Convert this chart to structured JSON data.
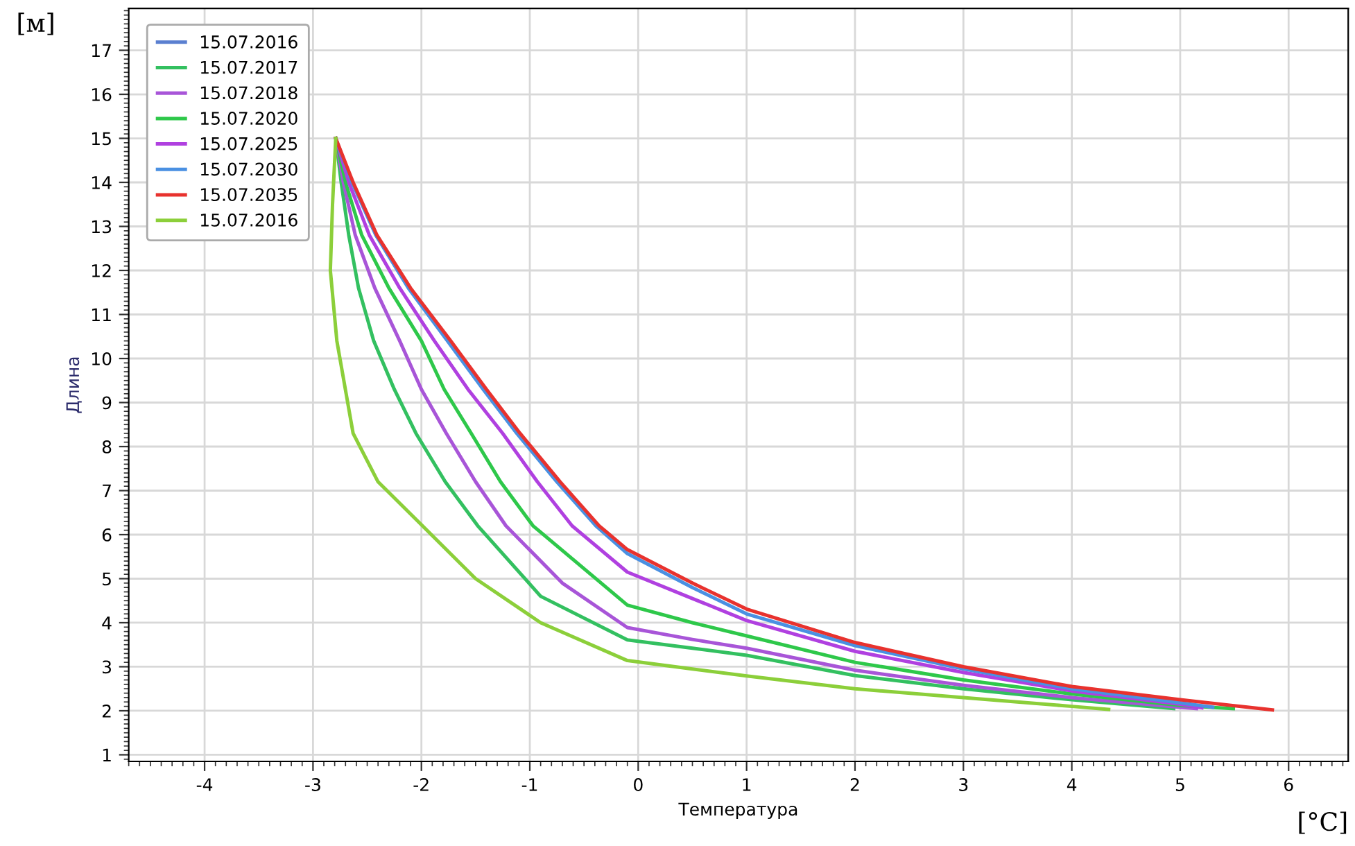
{
  "chart_data": {
    "type": "line",
    "xlabel": "Температура",
    "ylabel": "Длина",
    "annotations": [
      "[м]",
      "[°C]"
    ],
    "xlim": [
      -4.7,
      6.55
    ],
    "ylim": [
      0.85,
      17.95
    ],
    "xticks": [
      -4,
      -3,
      -2,
      -1,
      0,
      1,
      2,
      3,
      4,
      5,
      6
    ],
    "yticks": [
      1,
      2,
      3,
      4,
      5,
      6,
      7,
      8,
      9,
      10,
      11,
      12,
      13,
      14,
      15,
      16,
      17
    ],
    "grid": true,
    "legend": "top left",
    "marker": "none",
    "line_style": "solid",
    "series": [
      {
        "name": "15.07.2016",
        "color": "#5a7fd0",
        "values": [
          null
        ]
      },
      {
        "name": "15.07.2017",
        "color": "#33c060",
        "x": [
          -2.79,
          -2.74,
          -2.67,
          -2.58,
          -2.44,
          -2.25,
          -2.05,
          -1.78,
          -1.48,
          -0.9,
          -0.1,
          0.5,
          1,
          2,
          3,
          4,
          4.94
        ],
        "values": [
          15,
          14,
          12.8,
          11.6,
          10.4,
          9.3,
          8.3,
          7.2,
          6.2,
          4.6,
          3.61,
          3.42,
          3.26,
          2.8,
          2.5,
          2.25,
          2.05
        ]
      },
      {
        "name": "15.07.2018",
        "color": "#a855d8",
        "x": [
          -2.79,
          -2.72,
          -2.61,
          -2.43,
          -2.2,
          -2.0,
          -1.77,
          -1.5,
          -1.22,
          -0.7,
          -0.1,
          0.5,
          1,
          2,
          3,
          4,
          5,
          5.15
        ],
        "values": [
          15,
          14,
          12.8,
          11.6,
          10.4,
          9.3,
          8.3,
          7.2,
          6.2,
          4.9,
          3.89,
          3.62,
          3.42,
          2.92,
          2.58,
          2.3,
          2.08,
          2.05
        ]
      },
      {
        "name": "15.07.2020",
        "color": "#2ec84a",
        "x": [
          -2.79,
          -2.7,
          -2.55,
          -2.3,
          -2.0,
          -1.79,
          -1.54,
          -1.27,
          -0.97,
          -0.1,
          0.5,
          1,
          2,
          3,
          4,
          5,
          5.49
        ],
        "values": [
          15,
          14,
          12.8,
          11.6,
          10.4,
          9.3,
          8.3,
          7.2,
          6.2,
          4.4,
          4.0,
          3.7,
          3.1,
          2.7,
          2.38,
          2.12,
          2.05
        ]
      },
      {
        "name": "15.07.2025",
        "color": "#b040e0",
        "x": [
          -2.79,
          -2.67,
          -2.48,
          -2.2,
          -1.88,
          -1.57,
          -1.25,
          -0.93,
          -0.61,
          -0.1,
          0.5,
          1,
          2,
          3,
          4,
          5,
          5.2
        ],
        "values": [
          15,
          14,
          12.8,
          11.6,
          10.4,
          9.3,
          8.3,
          7.2,
          6.2,
          5.15,
          4.55,
          4.05,
          3.35,
          2.87,
          2.45,
          2.15,
          2.07
        ]
      },
      {
        "name": "15.07.2030",
        "color": "#4a90e2",
        "x": [
          -2.79,
          -2.64,
          -2.42,
          -2.12,
          -1.76,
          -1.43,
          -1.12,
          -0.75,
          -0.39,
          -0.1,
          0.5,
          1,
          2,
          3,
          4,
          5,
          5.3
        ],
        "values": [
          15,
          14,
          12.8,
          11.6,
          10.4,
          9.3,
          8.3,
          7.2,
          6.2,
          5.57,
          4.8,
          4.2,
          3.48,
          2.95,
          2.5,
          2.18,
          2.08
        ]
      },
      {
        "name": "15.07.2035",
        "color": "#e8322e",
        "x": [
          -2.79,
          -2.63,
          -2.41,
          -2.1,
          -1.73,
          -1.4,
          -1.09,
          -0.72,
          -0.36,
          -0.1,
          0.5,
          1,
          2,
          3,
          4,
          5,
          5.85
        ],
        "values": [
          15,
          14,
          12.8,
          11.6,
          10.4,
          9.3,
          8.3,
          7.2,
          6.2,
          5.66,
          4.9,
          4.31,
          3.55,
          3.0,
          2.55,
          2.25,
          2.02
        ]
      },
      {
        "name": "15.07.2016",
        "color": "#8ccf3a",
        "x": [
          -2.79,
          -2.82,
          -2.84,
          -2.78,
          -2.63,
          -2.4,
          -1.99,
          -1.5,
          -0.9,
          -0.1,
          0.5,
          1,
          2,
          3,
          4,
          4.34
        ],
        "values": [
          15,
          13.5,
          12,
          10.4,
          8.3,
          7.2,
          6.2,
          5.0,
          4.0,
          3.14,
          2.95,
          2.79,
          2.5,
          2.3,
          2.1,
          2.03
        ]
      }
    ]
  }
}
